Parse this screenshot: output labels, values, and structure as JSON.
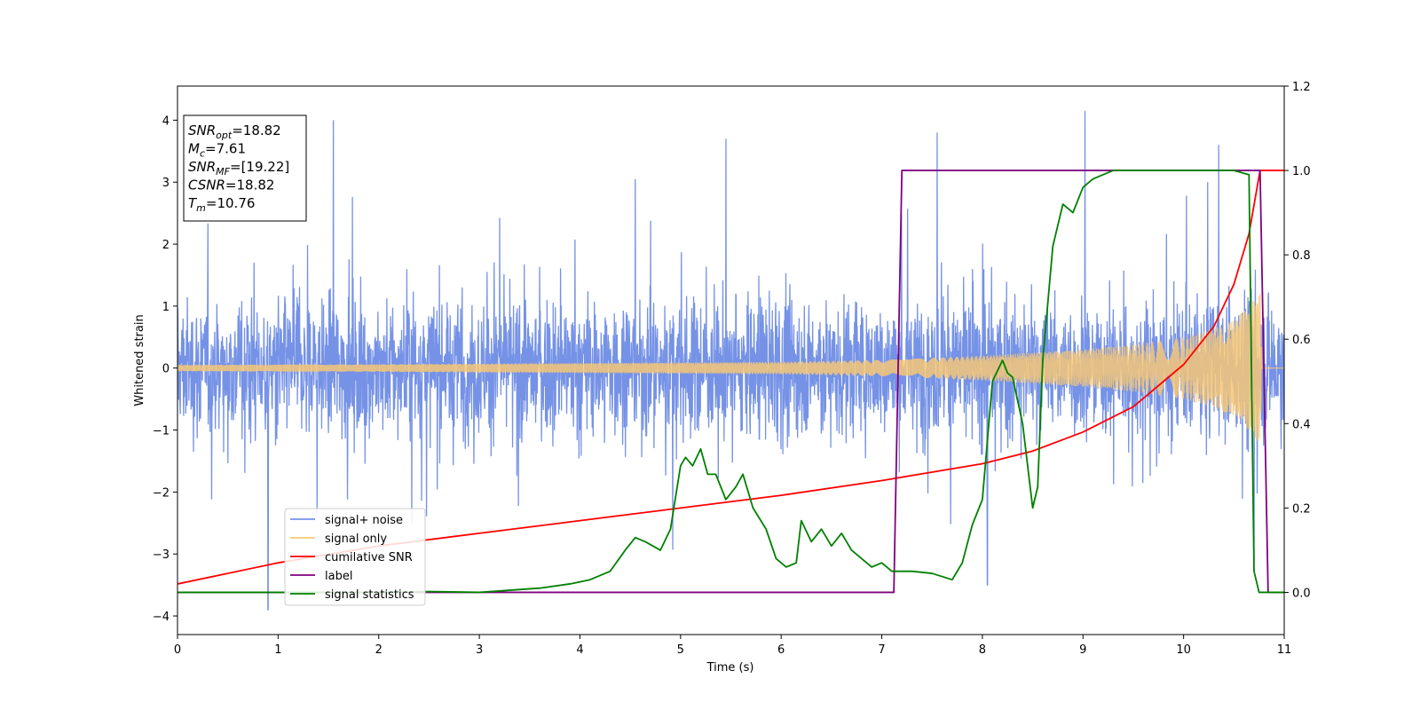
{
  "chart_data": {
    "type": "line",
    "xlabel": "Time (s)",
    "ylabel": "Whitened strain",
    "xlim": [
      0,
      11
    ],
    "ylim": [
      -4.3,
      4.55
    ],
    "y2lim": [
      -0.1,
      1.2
    ],
    "x_ticks": [
      "0",
      "1",
      "2",
      "3",
      "4",
      "5",
      "6",
      "7",
      "8",
      "9",
      "10",
      "11"
    ],
    "y_ticks": [
      "−4",
      "−3",
      "−2",
      "−1",
      "0",
      "1",
      "2",
      "3",
      "4"
    ],
    "y2_ticks": [
      "0.0",
      "0.2",
      "0.4",
      "0.6",
      "0.8",
      "1.0",
      "1.2"
    ],
    "grid": false,
    "legend_position": "lower-left",
    "info_box": [
      {
        "symbol": "SNR",
        "sub": "opt",
        "value": "=18.82"
      },
      {
        "symbol": "M",
        "sub": "c",
        "value": "=7.61"
      },
      {
        "symbol": "SNR",
        "sub": "MF",
        "value": "=[19.22]"
      },
      {
        "symbol": "CSNR",
        "sub": "",
        "value": "=18.82"
      },
      {
        "symbol": "T",
        "sub": "m",
        "value": "=10.76"
      }
    ],
    "series": [
      {
        "name": "signal+ noise",
        "axis": "left",
        "color": "#7592e6",
        "description_visual": "dense noise band",
        "noise_envelope": [
          [
            0,
            1.5
          ],
          [
            11,
            1.5
          ]
        ],
        "spikes": [
          [
            0.9,
            -3.9
          ],
          [
            1.55,
            4.0
          ],
          [
            4.55,
            3.05
          ],
          [
            5.45,
            3.7
          ],
          [
            7.55,
            3.8
          ],
          [
            8.05,
            -3.5
          ],
          [
            9.02,
            4.15
          ],
          [
            10.35,
            3.6
          ],
          [
            10.7,
            -3.1
          ]
        ]
      },
      {
        "name": "signal only",
        "axis": "left",
        "color": "#f6c777",
        "amplitude": [
          [
            0,
            0.05
          ],
          [
            2,
            0.06
          ],
          [
            4,
            0.08
          ],
          [
            6,
            0.1
          ],
          [
            7,
            0.13
          ],
          [
            8,
            0.2
          ],
          [
            9,
            0.3
          ],
          [
            9.5,
            0.38
          ],
          [
            10,
            0.5
          ],
          [
            10.3,
            0.63
          ],
          [
            10.5,
            0.78
          ],
          [
            10.65,
            1.0
          ],
          [
            10.76,
            1.25
          ],
          [
            10.78,
            0.0
          ],
          [
            11,
            0.0
          ]
        ]
      },
      {
        "name": "cumilative SNR",
        "axis": "right",
        "color": "#ff0000",
        "x": [
          0,
          1,
          2,
          3,
          4,
          5,
          6,
          7,
          7.5,
          8,
          8.5,
          9,
          9.5,
          10,
          10.3,
          10.5,
          10.65,
          10.76,
          11
        ],
        "y": [
          0.02,
          0.07,
          0.11,
          0.14,
          0.17,
          0.2,
          0.23,
          0.265,
          0.285,
          0.305,
          0.335,
          0.38,
          0.44,
          0.54,
          0.63,
          0.73,
          0.85,
          1.0,
          1.0
        ]
      },
      {
        "name": "label",
        "axis": "right",
        "color": "#800080",
        "x": [
          0,
          7.12,
          7.2,
          10.76,
          10.84,
          11
        ],
        "y": [
          0,
          0,
          1,
          1,
          0,
          0
        ]
      },
      {
        "name": "signal statistics",
        "axis": "right",
        "color": "#008000",
        "x": [
          0,
          1,
          2,
          2.5,
          3,
          3.3,
          3.6,
          3.9,
          4.1,
          4.3,
          4.45,
          4.55,
          4.65,
          4.8,
          4.9,
          5.0,
          5.05,
          5.12,
          5.2,
          5.27,
          5.35,
          5.45,
          5.55,
          5.62,
          5.72,
          5.85,
          5.95,
          6.05,
          6.15,
          6.2,
          6.3,
          6.4,
          6.5,
          6.6,
          6.7,
          6.8,
          6.9,
          7.0,
          7.1,
          7.3,
          7.5,
          7.7,
          7.8,
          7.9,
          8.0,
          8.1,
          8.2,
          8.25,
          8.3,
          8.4,
          8.5,
          8.55,
          8.6,
          8.7,
          8.8,
          8.9,
          9.0,
          9.1,
          9.2,
          9.3,
          9.5,
          10.0,
          10.5,
          10.65,
          10.7,
          10.75,
          10.8,
          11
        ],
        "y": [
          0.0,
          0.0,
          0.0,
          0.002,
          0.0,
          0.005,
          0.01,
          0.02,
          0.03,
          0.05,
          0.1,
          0.13,
          0.12,
          0.1,
          0.15,
          0.3,
          0.32,
          0.3,
          0.34,
          0.28,
          0.28,
          0.22,
          0.25,
          0.28,
          0.2,
          0.15,
          0.08,
          0.06,
          0.07,
          0.17,
          0.12,
          0.15,
          0.11,
          0.14,
          0.1,
          0.08,
          0.06,
          0.07,
          0.05,
          0.05,
          0.045,
          0.03,
          0.07,
          0.16,
          0.22,
          0.5,
          0.55,
          0.52,
          0.51,
          0.4,
          0.2,
          0.25,
          0.55,
          0.82,
          0.92,
          0.9,
          0.96,
          0.98,
          0.99,
          1.0,
          1.0,
          1.0,
          1.0,
          0.99,
          0.05,
          0.0,
          0.0,
          0.0
        ]
      }
    ]
  }
}
